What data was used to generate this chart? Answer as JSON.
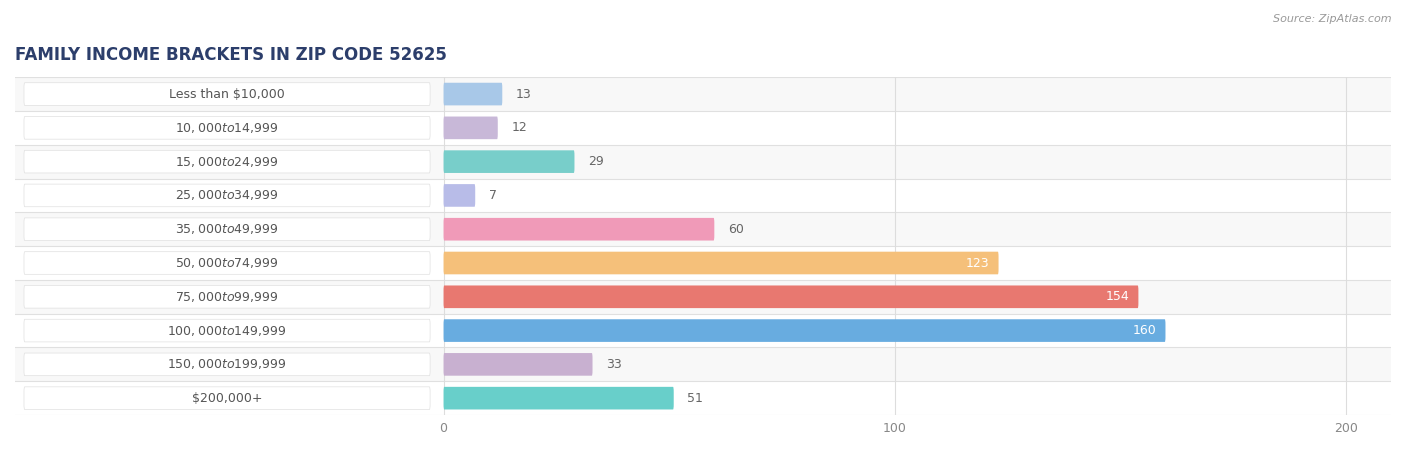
{
  "title": "FAMILY INCOME BRACKETS IN ZIP CODE 52625",
  "source": "Source: ZipAtlas.com",
  "categories": [
    "Less than $10,000",
    "$10,000 to $14,999",
    "$15,000 to $24,999",
    "$25,000 to $34,999",
    "$35,000 to $49,999",
    "$50,000 to $74,999",
    "$75,000 to $99,999",
    "$100,000 to $149,999",
    "$150,000 to $199,999",
    "$200,000+"
  ],
  "values": [
    13,
    12,
    29,
    7,
    60,
    123,
    154,
    160,
    33,
    51
  ],
  "bar_colors": [
    "#a8c8e8",
    "#c8b8d8",
    "#78ceca",
    "#b8bce8",
    "#f09ab8",
    "#f5c07a",
    "#e87870",
    "#68ace0",
    "#c8b0d0",
    "#68cfca"
  ],
  "background_color": "#ffffff",
  "row_bg_even": "#f8f8f8",
  "row_bg_odd": "#ffffff",
  "row_separator_color": "#e0e0e0",
  "grid_color": "#dddddd",
  "xlim_left": -95,
  "xlim_right": 210,
  "xticks": [
    0,
    100,
    200
  ],
  "title_fontsize": 12,
  "label_fontsize": 9,
  "value_fontsize": 9,
  "bar_height": 0.65,
  "title_color": "#2c3e6b",
  "label_text_color": "#555555",
  "value_color_inside": "#ffffff",
  "value_color_outside": "#666666",
  "source_color": "#999999"
}
